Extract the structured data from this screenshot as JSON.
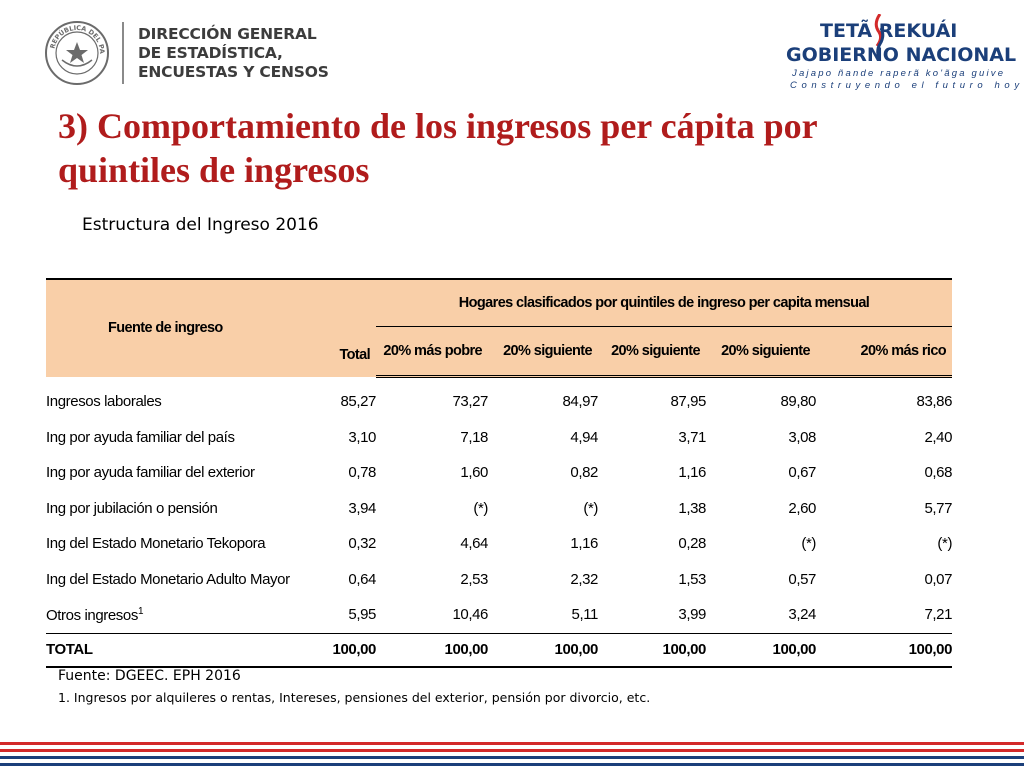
{
  "header": {
    "org_lines": [
      "DIRECCIÓN GENERAL",
      "DE ESTADÍSTICA,",
      "ENCUESTAS Y CENSOS"
    ],
    "seal_text": "REPÚBLICA DEL PARAGUAY",
    "brand_line1": "TETÃ  REKUÁI",
    "brand_line2": "GOBIERNO NACIONAL",
    "slogan_guarani": "Jajapo ñande raperã ko'ãga guive",
    "slogan_spanish": "Construyendo el futuro hoy"
  },
  "slide": {
    "title": "3) Comportamiento de los ingresos per cápita por quintiles de ingresos",
    "subtitle": "Estructura del Ingreso 2016"
  },
  "table": {
    "header_fuente": "Fuente de ingreso",
    "header_group": "Hogares clasificados por quintiles de ingreso per capita mensual",
    "columns": [
      "Total",
      "20% más pobre",
      "20% siguiente",
      "20% siguiente",
      "20% siguiente",
      "20% más rico"
    ],
    "rows": [
      {
        "label": "Ingresos laborales",
        "values": [
          "85,27",
          "73,27",
          "84,97",
          "87,95",
          "89,80",
          "83,86"
        ]
      },
      {
        "label": "Ing por ayuda familiar del país",
        "values": [
          "3,10",
          "7,18",
          "4,94",
          "3,71",
          "3,08",
          "2,40"
        ]
      },
      {
        "label": "Ing por ayuda familiar del exterior",
        "values": [
          "0,78",
          "1,60",
          "0,82",
          "1,16",
          "0,67",
          "0,68"
        ]
      },
      {
        "label": "Ing por jubilación o pensión",
        "values": [
          "3,94",
          "(*)",
          "(*)",
          "1,38",
          "2,60",
          "5,77"
        ]
      },
      {
        "label": "Ing del Estado Monetario Tekopora",
        "values": [
          "0,32",
          "4,64",
          "1,16",
          "0,28",
          "(*)",
          "(*)"
        ]
      },
      {
        "label": "Ing del Estado Monetario Adulto Mayor",
        "values": [
          "0,64",
          "2,53",
          "2,32",
          "1,53",
          "0,57",
          "0,07"
        ]
      },
      {
        "label": "Otros ingresos",
        "sup": "1",
        "values": [
          "5,95",
          "10,46",
          "5,11",
          "3,99",
          "3,24",
          "7,21"
        ]
      }
    ],
    "total": {
      "label": "TOTAL",
      "values": [
        "100,00",
        "100,00",
        "100,00",
        "100,00",
        "100,00",
        "100,00"
      ]
    }
  },
  "footer": {
    "source": "Fuente: DGEEC. EPH 2016",
    "note": "1. Ingresos por alquileres o rentas, Intereses, pensiones del exterior, pensión por divorcio, etc."
  },
  "colors": {
    "title_red": "#b01c1c",
    "header_fill": "#f9cfa8",
    "brand_blue": "#1b3f7a",
    "stripe_red": "#d32a2a",
    "stripe_blue": "#1b3f7a"
  }
}
